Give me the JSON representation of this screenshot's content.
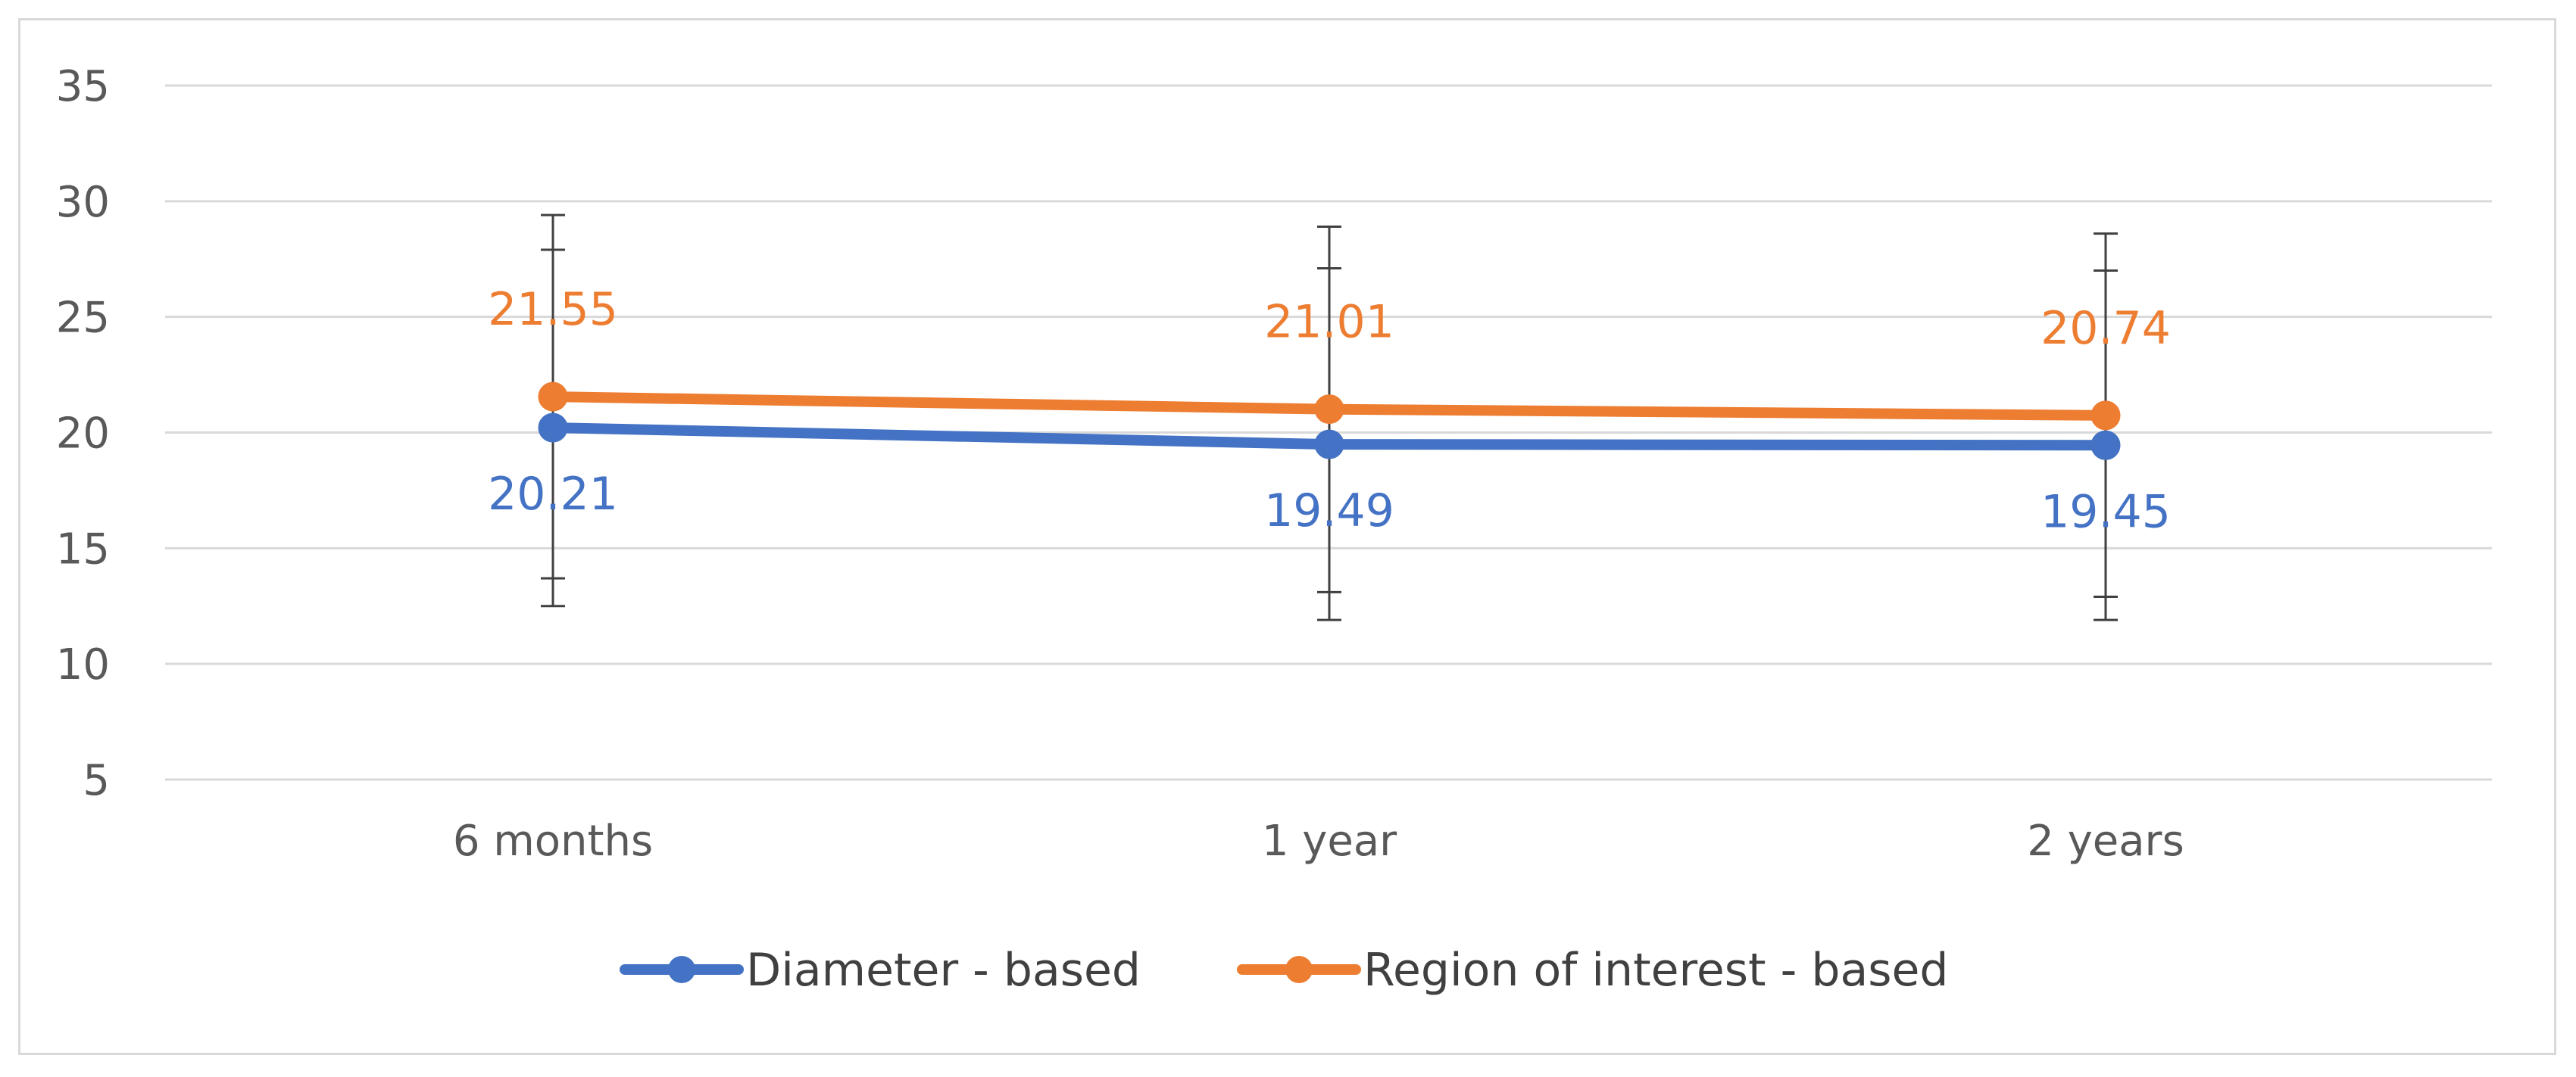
{
  "chart_data": {
    "type": "line",
    "title": "",
    "xlabel": "",
    "ylabel": "",
    "categories": [
      "6 months",
      "1 year",
      "2 years"
    ],
    "yticks": [
      "5",
      "10",
      "15",
      "20",
      "25",
      "30",
      "35"
    ],
    "ylim": [
      5,
      35
    ],
    "grid": "horizontal",
    "legend_position": "bottom",
    "series": [
      {
        "name": "Diameter - based",
        "color": "#4472c4",
        "values": [
          20.21,
          19.49,
          19.45
        ],
        "data_labels": [
          "20.21",
          "19.49",
          "19.45"
        ],
        "error_low": [
          13.7,
          13.1,
          12.9
        ],
        "error_high": [
          27.9,
          27.1,
          27.0
        ]
      },
      {
        "name": "Region of interest - based",
        "color": "#ed7d31",
        "values": [
          21.55,
          21.01,
          20.74
        ],
        "data_labels": [
          "21.55",
          "21.01",
          "20.74"
        ],
        "error_low": [
          12.5,
          11.9,
          11.9
        ],
        "error_high": [
          29.4,
          28.9,
          28.6
        ]
      }
    ]
  }
}
